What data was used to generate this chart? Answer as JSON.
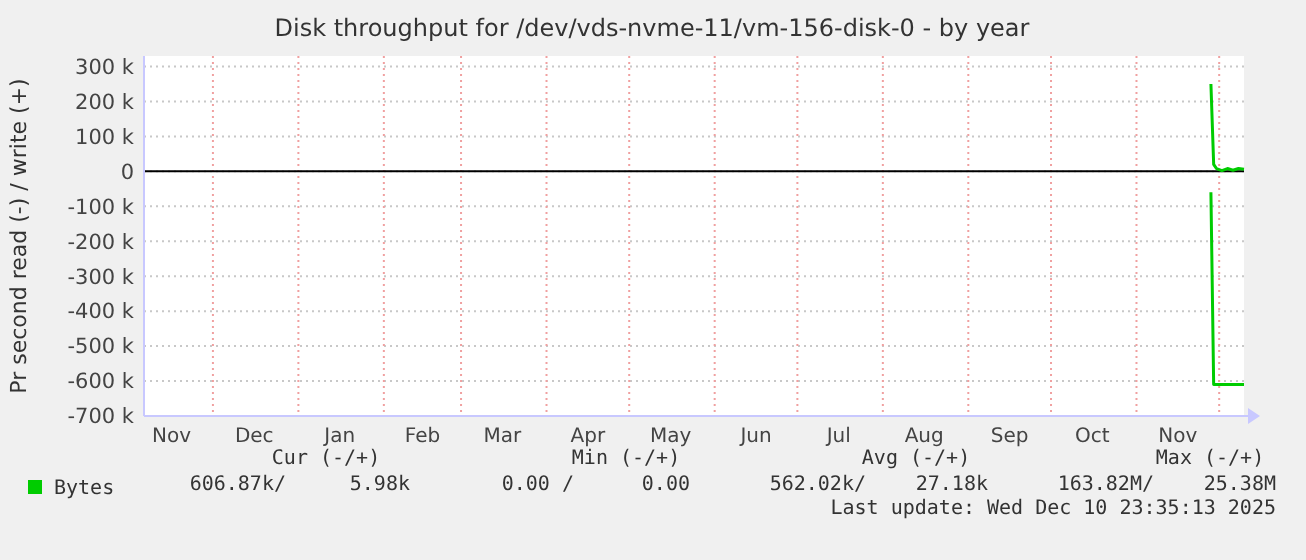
{
  "chart_data": {
    "type": "line",
    "title": "Disk throughput for /dev/vds-nvme-11/vm-156-disk-0 - by year",
    "ylabel": "Pr second read (-) / write (+)",
    "series": [
      {
        "name": "Bytes",
        "color": "#00cc00",
        "x": [
          "2025-11-28",
          "2025-11-29",
          "2025-11-30",
          "2025-12-02",
          "2025-12-04",
          "2025-12-06",
          "2025-12-08",
          "2025-12-10"
        ],
        "values": [
          250000,
          20000,
          8000,
          2000,
          8000,
          3000,
          8000,
          6000
        ]
      },
      {
        "color": "#00cc00",
        "x": [
          "2025-11-28",
          "2025-11-29",
          "2025-12-10"
        ],
        "values": [
          -60000,
          -610000,
          -610000
        ]
      }
    ],
    "xlim": [
      "2024-11-06",
      "2025-12-10"
    ],
    "xticks": [
      {
        "value": "2024-11-16",
        "label": "Nov"
      },
      {
        "value": "2024-12-01",
        "label": null
      },
      {
        "value": "2024-12-16",
        "label": "Dec"
      },
      {
        "value": "2025-01-01",
        "label": null
      },
      {
        "value": "2025-01-16",
        "label": "Jan"
      },
      {
        "value": "2025-02-01",
        "label": null
      },
      {
        "value": "2025-02-15",
        "label": "Feb"
      },
      {
        "value": "2025-03-01",
        "label": null
      },
      {
        "value": "2025-03-16",
        "label": "Mar"
      },
      {
        "value": "2025-04-01",
        "label": null
      },
      {
        "value": "2025-04-16",
        "label": "Apr"
      },
      {
        "value": "2025-05-01",
        "label": null
      },
      {
        "value": "2025-05-16",
        "label": "May"
      },
      {
        "value": "2025-06-01",
        "label": null
      },
      {
        "value": "2025-06-16",
        "label": "Jun"
      },
      {
        "value": "2025-07-01",
        "label": null
      },
      {
        "value": "2025-07-16",
        "label": "Jul"
      },
      {
        "value": "2025-08-01",
        "label": null
      },
      {
        "value": "2025-08-16",
        "label": "Aug"
      },
      {
        "value": "2025-09-01",
        "label": null
      },
      {
        "value": "2025-09-16",
        "label": "Sep"
      },
      {
        "value": "2025-10-01",
        "label": null
      },
      {
        "value": "2025-10-16",
        "label": "Oct"
      },
      {
        "value": "2025-11-01",
        "label": null
      },
      {
        "value": "2025-11-16",
        "label": "Nov"
      },
      {
        "value": "2025-12-01",
        "label": null
      }
    ],
    "ylim": [
      -700000,
      330000
    ],
    "yticks": [
      {
        "value": 300000,
        "label": "300 k"
      },
      {
        "value": 200000,
        "label": "200 k"
      },
      {
        "value": 100000,
        "label": "100 k"
      },
      0,
      {
        "value": -100000,
        "label": "-100 k"
      },
      {
        "value": -200000,
        "label": "-200 k"
      },
      {
        "value": -300000,
        "label": "-300 k"
      },
      {
        "value": -400000,
        "label": "-400 k"
      },
      {
        "value": -500000,
        "label": "-500 k"
      },
      {
        "value": -600000,
        "label": "-600 k"
      },
      {
        "value": -700000,
        "label": "-700 k"
      }
    ],
    "ref_lines": [
      {
        "axis": "y",
        "value": 0,
        "color": "#000000"
      }
    ],
    "grid": true,
    "legend": "bottom",
    "marker": "none",
    "line_style": "solid",
    "annotations": [
      "Cur (-/+)",
      "Min (-/+)",
      "Avg (-/+)",
      "Max (-/+)",
      "606.87k/",
      "5.98k",
      "0.00 /",
      "0.00",
      "562.02k/",
      "27.18k",
      "163.82M/",
      "25.38M",
      "Last update: Wed Dec 10 23:35:13 2025"
    ]
  }
}
